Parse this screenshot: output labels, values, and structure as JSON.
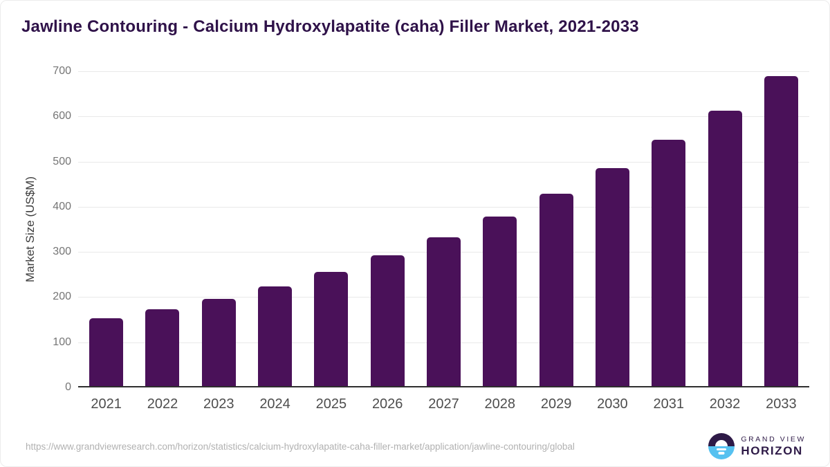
{
  "chart_data": {
    "type": "bar",
    "title": "Jawline Contouring - Calcium Hydroxylapatite (caha) Filler Market, 2021-2033",
    "categories": [
      "2021",
      "2022",
      "2023",
      "2024",
      "2025",
      "2026",
      "2027",
      "2028",
      "2029",
      "2030",
      "2031",
      "2032",
      "2033"
    ],
    "values": [
      150,
      170,
      193,
      221,
      252,
      289,
      330,
      376,
      426,
      483,
      545,
      610,
      687
    ],
    "xlabel": "",
    "ylabel": "Market Size (US$M)",
    "ylim": [
      0,
      700
    ],
    "ytick_step": 100,
    "grid": "horizontal",
    "legend": "none",
    "bar_color": "#4A1159"
  },
  "footer": {
    "source_url": "https://www.grandviewresearch.com/horizon/statistics/calcium-hydroxylapatite-caha-filler-market/application/jawline-contouring/global",
    "brand_line1": "GRAND VIEW",
    "brand_line2": "HORIZON"
  },
  "colors": {
    "title": "#2F1249",
    "bar": "#4A1159",
    "axis_line": "#2e2e2e",
    "gridline": "#e9e9e9",
    "ytick_label": "#757575",
    "xtick_label": "#4d4d4d",
    "axis_title": "#3d3d3d",
    "source_text": "#b1b1b1",
    "brand_purple": "#2E1A47",
    "brand_blue": "#56C1F0"
  }
}
